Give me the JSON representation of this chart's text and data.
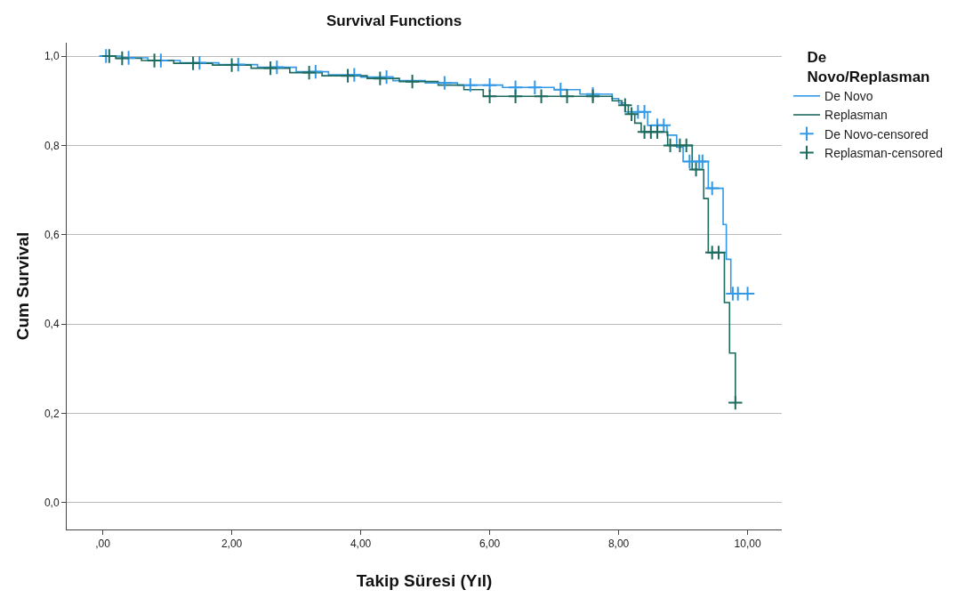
{
  "chart_data": {
    "type": "step",
    "title": "Survival Functions",
    "xlabel": "Takip Süresi (Yıl)",
    "ylabel": "Cum Survival",
    "legend_title": "De Novo/Replasman",
    "xlim": [
      -0.56,
      10.53
    ],
    "xticks": [
      {
        "value": 0,
        "label": ",00"
      },
      {
        "value": 2,
        "label": "2,00"
      },
      {
        "value": 4,
        "label": "4,00"
      },
      {
        "value": 6,
        "label": "6,00"
      },
      {
        "value": 8,
        "label": "8,00"
      },
      {
        "value": 10,
        "label": "10,00"
      }
    ],
    "ylim": [
      -0.06,
      1.03
    ],
    "yticks": [
      {
        "value": 0,
        "label": "0,0"
      },
      {
        "value": 0.2,
        "label": "0,2"
      },
      {
        "value": 0.4,
        "label": "0,4"
      },
      {
        "value": 0.6,
        "label": "0,6"
      },
      {
        "value": 0.8,
        "label": "0,8"
      },
      {
        "value": 1.0,
        "label": "1,0"
      }
    ],
    "grid": "y",
    "legend": "right",
    "series": [
      {
        "name": "De Novo",
        "marker": "none",
        "color": "#3399e6",
        "x": [
          0,
          0.3,
          0.7,
          1.2,
          1.8,
          2.4,
          3.0,
          3.5,
          4.0,
          4.5,
          5.0,
          5.5,
          6.2,
          7.0,
          7.4,
          7.9,
          8.0,
          8.1,
          8.45,
          8.75,
          8.9,
          9.0,
          9.39,
          9.62,
          9.67,
          9.74,
          10.0
        ],
        "values": [
          1.0,
          0.996,
          0.99,
          0.985,
          0.981,
          0.975,
          0.965,
          0.958,
          0.953,
          0.945,
          0.94,
          0.935,
          0.93,
          0.925,
          0.915,
          0.905,
          0.895,
          0.875,
          0.845,
          0.823,
          0.796,
          0.764,
          0.704,
          0.623,
          0.545,
          0.468,
          0.468
        ]
      },
      {
        "name": "Replasman",
        "marker": "none",
        "color": "#1d6a5e",
        "x": [
          0,
          0.2,
          0.6,
          1.1,
          1.7,
          2.3,
          2.9,
          3.4,
          4.1,
          4.6,
          5.2,
          5.6,
          5.9,
          7.9,
          8.05,
          8.15,
          8.25,
          8.35,
          8.76,
          9.14,
          9.32,
          9.39,
          9.64,
          9.72,
          9.81
        ],
        "values": [
          1.0,
          0.995,
          0.99,
          0.984,
          0.98,
          0.973,
          0.963,
          0.956,
          0.95,
          0.943,
          0.935,
          0.925,
          0.91,
          0.9,
          0.89,
          0.87,
          0.85,
          0.83,
          0.8,
          0.746,
          0.681,
          0.56,
          0.448,
          0.335,
          0.224
        ]
      },
      {
        "name": "De Novo-censored",
        "type": "scatter",
        "marker": "cross",
        "color": "#3399e6",
        "x": [
          0.05,
          0.4,
          0.9,
          1.5,
          2.1,
          2.7,
          3.3,
          3.9,
          4.4,
          5.3,
          5.7,
          6.0,
          6.4,
          6.7,
          7.1,
          7.6,
          8.3,
          8.4,
          8.6,
          8.7,
          9.1,
          9.25,
          9.3,
          9.45,
          9.77,
          9.85,
          10.0
        ],
        "values": [
          1.0,
          0.996,
          0.99,
          0.985,
          0.981,
          0.975,
          0.965,
          0.958,
          0.953,
          0.94,
          0.935,
          0.935,
          0.93,
          0.93,
          0.925,
          0.915,
          0.875,
          0.875,
          0.845,
          0.845,
          0.764,
          0.764,
          0.764,
          0.704,
          0.468,
          0.468,
          0.468
        ]
      },
      {
        "name": "Replasman-censored",
        "type": "scatter",
        "marker": "cross",
        "color": "#1d6a5e",
        "x": [
          0.1,
          0.3,
          0.8,
          1.4,
          2.0,
          2.6,
          3.2,
          3.8,
          4.3,
          4.8,
          6.0,
          6.4,
          6.8,
          7.2,
          7.6,
          8.1,
          8.2,
          8.4,
          8.5,
          8.6,
          8.8,
          8.95,
          9.05,
          9.2,
          9.45,
          9.55,
          9.81
        ],
        "values": [
          1.0,
          0.995,
          0.99,
          0.984,
          0.98,
          0.973,
          0.963,
          0.956,
          0.95,
          0.943,
          0.91,
          0.91,
          0.91,
          0.91,
          0.91,
          0.89,
          0.87,
          0.83,
          0.83,
          0.83,
          0.8,
          0.8,
          0.8,
          0.746,
          0.56,
          0.56,
          0.224
        ]
      }
    ]
  }
}
